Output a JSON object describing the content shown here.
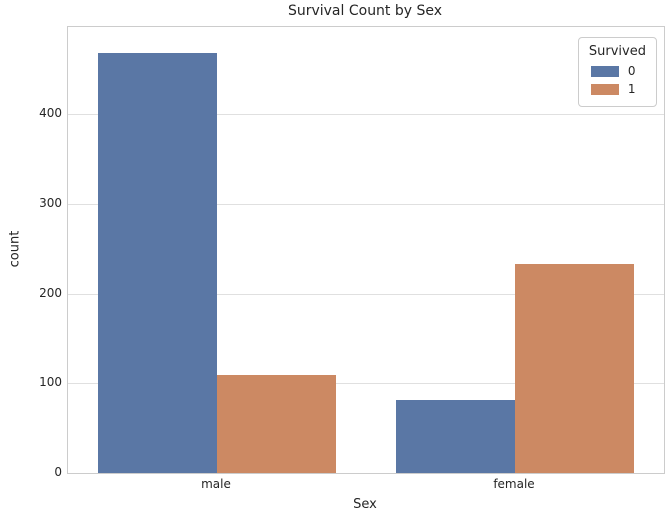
{
  "chart_data": {
    "type": "bar",
    "title": "Survival Count by Sex",
    "xlabel": "Sex",
    "ylabel": "count",
    "categories": [
      "male",
      "female"
    ],
    "series": [
      {
        "name": "0",
        "color": "#5a77a5",
        "values": [
          468,
          81
        ]
      },
      {
        "name": "1",
        "color": "#cc8963",
        "values": [
          109,
          233
        ]
      }
    ],
    "yticks": [
      0,
      100,
      200,
      300,
      400
    ],
    "ylim": [
      0,
      497
    ],
    "grid": true,
    "legend": {
      "title": "Survived",
      "position": "upper right",
      "entries": [
        {
          "label": "0",
          "color": "#5a77a5"
        },
        {
          "label": "1",
          "color": "#cc8963"
        }
      ]
    }
  },
  "style": {
    "grid_color": "#e0e0e0",
    "spine_color": "#cccccc",
    "text_color": "#262626",
    "background": "#ffffff",
    "bar_blue": "#5a77a5",
    "bar_orange": "#cc8963"
  }
}
